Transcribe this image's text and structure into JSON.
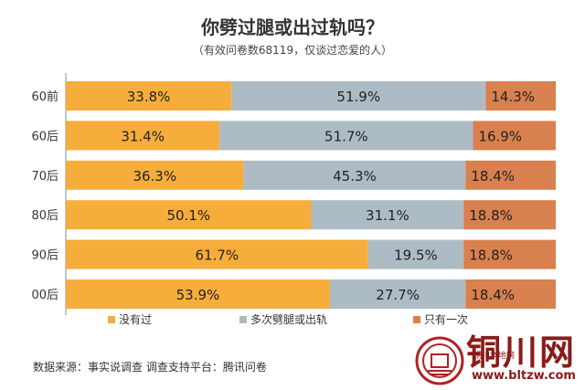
{
  "page": {
    "source_text": "数据来源：事实说调查  调查支持平台：腾讯问卷",
    "watermark": {
      "name": "铜川网",
      "url": "www.bltzw.com",
      "small_text": "铜川本地网"
    }
  },
  "chart_data": {
    "type": "bar",
    "orientation": "horizontal",
    "stacked": true,
    "title": "你劈过腿或出过轨吗？",
    "subtitle": "（有效问卷数68119，仅谈过恋爱的人）",
    "categories": [
      "60前",
      "60后",
      "70后",
      "80后",
      "90后",
      "00后"
    ],
    "series": [
      {
        "name": "没有过",
        "color": "#f6ad3c",
        "values": [
          33.8,
          31.4,
          36.3,
          50.1,
          61.7,
          53.9
        ],
        "labels": [
          "33.8%",
          "31.4%",
          "36.3%",
          "50.1%",
          "61.7%",
          "53.9%"
        ]
      },
      {
        "name": "多次劈腿或出轨",
        "color": "#adbcc4",
        "values": [
          51.9,
          51.7,
          45.3,
          31.1,
          19.5,
          27.7
        ],
        "labels": [
          "51.9%",
          "51.7%",
          "45.3%",
          "31.1%",
          "19.5%",
          "27.7%"
        ]
      },
      {
        "name": "只有一次",
        "color": "#d9804f",
        "values": [
          14.3,
          16.9,
          18.4,
          18.8,
          18.8,
          18.4
        ],
        "labels": [
          "14.3%",
          "16.9%",
          "18.4%",
          "18.8%",
          "18.8%",
          "18.4%"
        ]
      }
    ],
    "xlim": [
      0,
      100
    ],
    "legend_position": "bottom",
    "grid": false
  }
}
